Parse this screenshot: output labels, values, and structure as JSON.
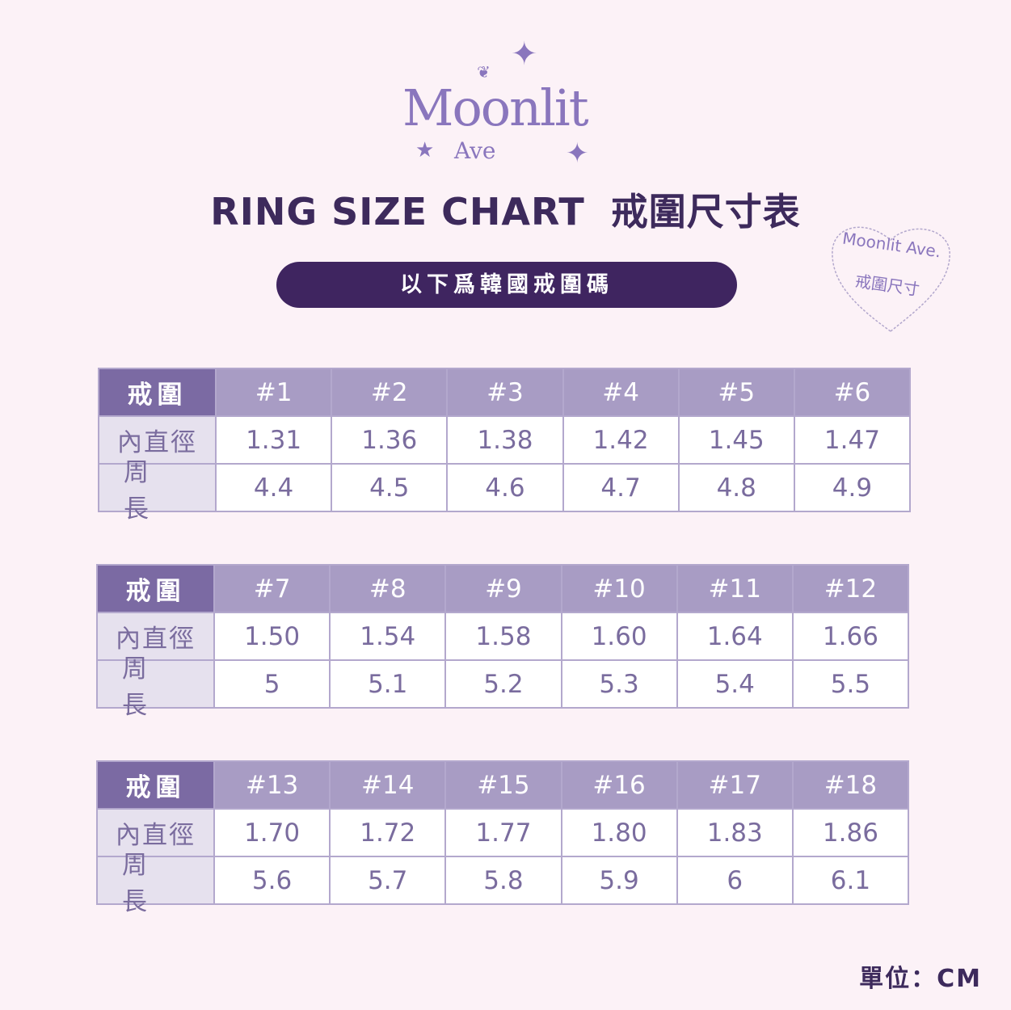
{
  "logo": {
    "name": "Moonlit",
    "sub": "Ave"
  },
  "title": {
    "en": "RING SIZE CHART",
    "zh": "戒圍尺寸表"
  },
  "banner": "以下爲韓國戒圍碼",
  "stamp": {
    "line1": "Moonlit Ave.",
    "line2": "戒圍尺寸",
    "ring_text": "MOONLIT AVE"
  },
  "row_labels": {
    "size": "戒圍",
    "diameter": "內直徑",
    "circumference": "周長"
  },
  "tables": [
    {
      "sizes": [
        "#1",
        "#2",
        "#3",
        "#4",
        "#5",
        "#6"
      ],
      "diameter": [
        "1.31",
        "1.36",
        "1.38",
        "1.42",
        "1.45",
        "1.47"
      ],
      "circumference": [
        "4.4",
        "4.5",
        "4.6",
        "4.7",
        "4.8",
        "4.9"
      ]
    },
    {
      "sizes": [
        "#7",
        "#8",
        "#9",
        "#10",
        "#11",
        "#12"
      ],
      "diameter": [
        "1.50",
        "1.54",
        "1.58",
        "1.60",
        "1.64",
        "1.66"
      ],
      "circumference": [
        "5",
        "5.1",
        "5.2",
        "5.3",
        "5.4",
        "5.5"
      ]
    },
    {
      "sizes": [
        "#13",
        "#14",
        "#15",
        "#16",
        "#17",
        "#18"
      ],
      "diameter": [
        "1.70",
        "1.72",
        "1.77",
        "1.80",
        "1.83",
        "1.86"
      ],
      "circumference": [
        "5.6",
        "5.7",
        "5.8",
        "5.9",
        "6",
        "6.1"
      ]
    }
  ],
  "unit": "單位：CM",
  "colors": {
    "background": "#fcf2f7",
    "title": "#3d2a5c",
    "banner": "#3f2560",
    "header_label": "#7b6aa3",
    "header": "#a89cc4",
    "row_label": "#e6e1ee",
    "text": "#7a6c9e"
  }
}
